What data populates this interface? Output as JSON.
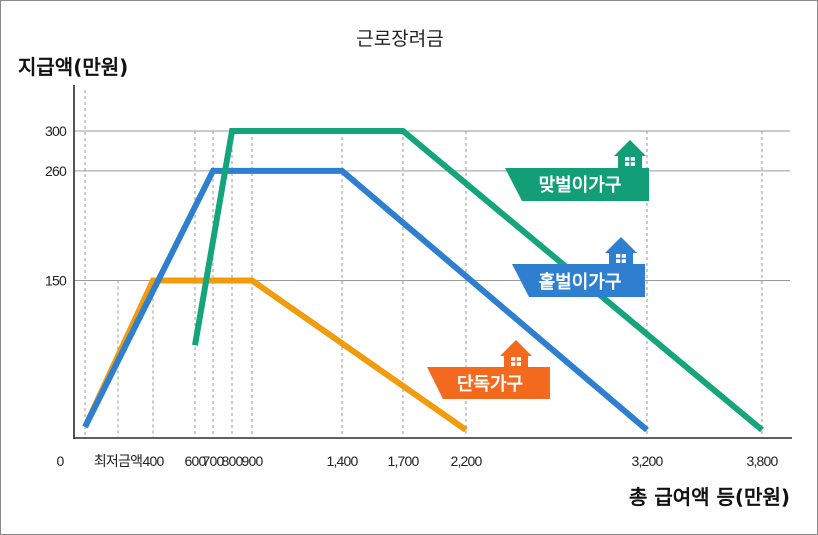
{
  "chart_data": {
    "type": "line",
    "title": "근로장려금",
    "ylabel": "지급액(만원)",
    "xlabel": "총 급여액 등(만원)",
    "xlim": [
      0,
      3800
    ],
    "ylim": [
      0,
      300
    ],
    "x_ticks": [
      {
        "value": 0,
        "label": "0"
      },
      {
        "value": 200,
        "label": "최저금액"
      },
      {
        "value": 400,
        "label": "400"
      },
      {
        "value": 600,
        "label": "600"
      },
      {
        "value": 700,
        "label": "700"
      },
      {
        "value": 800,
        "label": "800"
      },
      {
        "value": 900,
        "label": "900"
      },
      {
        "value": 1400,
        "label": "1,400"
      },
      {
        "value": 1700,
        "label": "1,700"
      },
      {
        "value": 2200,
        "label": "2,200"
      },
      {
        "value": 3200,
        "label": "3,200"
      },
      {
        "value": 3800,
        "label": "3,800"
      }
    ],
    "y_ticks": [
      {
        "value": 150,
        "label": "150"
      },
      {
        "value": 260,
        "label": "260"
      },
      {
        "value": 300,
        "label": "300"
      }
    ],
    "series": [
      {
        "name": "단독가구",
        "color": "#f29b0c",
        "points": [
          [
            0,
            3
          ],
          [
            400,
            150
          ],
          [
            900,
            150
          ],
          [
            2200,
            0
          ]
        ]
      },
      {
        "name": "홑벌이가구",
        "color": "#2f7fd0",
        "points": [
          [
            0,
            3
          ],
          [
            700,
            260
          ],
          [
            1400,
            260
          ],
          [
            3200,
            0
          ]
        ]
      },
      {
        "name": "맞벌이가구",
        "color": "#15a57c",
        "points": [
          [
            600,
            85
          ],
          [
            800,
            300
          ],
          [
            1700,
            300
          ],
          [
            3800,
            0
          ]
        ]
      }
    ],
    "legend_labels": [
      {
        "text": "맞벌이가구",
        "color": "#129f77"
      },
      {
        "text": "홑벌이가구",
        "color": "#2f7fd0"
      },
      {
        "text": "단독가구",
        "color": "#f36a1e"
      }
    ]
  }
}
